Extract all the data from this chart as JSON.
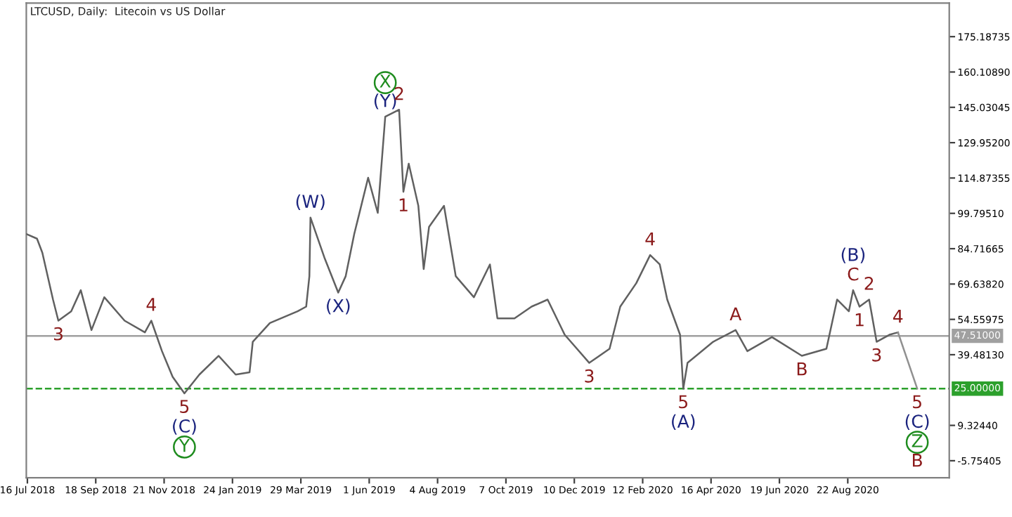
{
  "chart_data": {
    "type": "line",
    "title": "LTCUSD, Daily:  Litecoin vs US Dollar",
    "series": [
      {
        "color": "#606060",
        "x": [
          "2018-07-15",
          "2018-07-25",
          "2018-07-30",
          "2018-08-09",
          "2018-08-14",
          "2018-08-26",
          "2018-09-04",
          "2018-09-14",
          "2018-09-26",
          "2018-10-15",
          "2018-11-03",
          "2018-11-09",
          "2018-11-19",
          "2018-11-29",
          "2018-12-10",
          "2018-12-24",
          "2019-01-11",
          "2019-01-27",
          "2019-02-09",
          "2019-02-12",
          "2019-02-28",
          "2019-03-26",
          "2019-04-03",
          "2019-04-06",
          "2019-04-07",
          "2019-04-20",
          "2019-05-03",
          "2019-05-10",
          "2019-05-18",
          "2019-05-31",
          "2019-06-09",
          "2019-06-16",
          "2019-06-29",
          "2019-07-03",
          "2019-07-08",
          "2019-07-17",
          "2019-07-22",
          "2019-07-27",
          "2019-08-10",
          "2019-08-21",
          "2019-09-07",
          "2019-09-22",
          "2019-09-29",
          "2019-10-15",
          "2019-10-31",
          "2019-11-15",
          "2019-12-01",
          "2019-12-24",
          "2020-01-12",
          "2020-01-22",
          "2020-02-06",
          "2020-02-19",
          "2020-02-28",
          "2020-03-06",
          "2020-03-18",
          "2020-03-21",
          "2020-03-25",
          "2020-04-18",
          "2020-05-09",
          "2020-05-20",
          "2020-06-12",
          "2020-07-10",
          "2020-08-02",
          "2020-08-12",
          "2020-08-23",
          "2020-08-27",
          "2020-09-02",
          "2020-09-11",
          "2020-09-18",
          "2020-09-30",
          "2020-10-08"
        ],
        "values": [
          91,
          89,
          83,
          63,
          54,
          58,
          67,
          50,
          64,
          54,
          49,
          54,
          41,
          30,
          23,
          31,
          39,
          31,
          32,
          45,
          53,
          58,
          60,
          73,
          98,
          81,
          66,
          73,
          91,
          115,
          100,
          141,
          144,
          109,
          121,
          103,
          76,
          94,
          103,
          73,
          64,
          78,
          55,
          55,
          60,
          63,
          48,
          36,
          42,
          60,
          70,
          82,
          78,
          63,
          48,
          25,
          36,
          45,
          50,
          41,
          47,
          39,
          42,
          63,
          58,
          67,
          60,
          63,
          45,
          48,
          49
        ]
      },
      {
        "color": "#909090",
        "x": [
          "2020-10-08",
          "2020-10-26"
        ],
        "values": [
          49,
          25
        ]
      }
    ],
    "xlim": [
      "2018-07-15",
      "2020-11-25"
    ],
    "xticks": [
      {
        "value": "2018-07-16",
        "label": "16 Jul 2018"
      },
      {
        "value": "2018-09-18",
        "label": "18 Sep 2018"
      },
      {
        "value": "2018-11-21",
        "label": "21 Nov 2018"
      },
      {
        "value": "2019-01-24",
        "label": "24 Jan 2019"
      },
      {
        "value": "2019-03-29",
        "label": "29 Mar 2019"
      },
      {
        "value": "2019-06-01",
        "label": "1 Jun 2019"
      },
      {
        "value": "2019-08-04",
        "label": "4 Aug 2019"
      },
      {
        "value": "2019-10-07",
        "label": "7 Oct 2019"
      },
      {
        "value": "2019-12-10",
        "label": "10 Dec 2019"
      },
      {
        "value": "2020-02-12",
        "label": "12 Feb 2020"
      },
      {
        "value": "2020-04-16",
        "label": "16 Apr 2020"
      },
      {
        "value": "2020-06-19",
        "label": "19 Jun 2020"
      },
      {
        "value": "2020-08-22",
        "label": "22 Aug 2020"
      }
    ],
    "ylim": [
      -13,
      189.5
    ],
    "yticks": [
      175.18735,
      {
        "value": 160.1089,
        "label": "160.10890"
      },
      145.03045,
      {
        "value": 129.952,
        "label": "129.95200"
      },
      114.87355,
      {
        "value": 99.7951,
        "label": "99.79510"
      },
      84.71665,
      {
        "value": 69.6382,
        "label": "69.63820"
      },
      54.55975,
      {
        "value": 39.4813,
        "label": "39.48130"
      },
      {
        "value": 9.3244,
        "label": "9.32440"
      },
      -5.75405
    ],
    "ref_lines": [
      {
        "axis": "y",
        "value": 47.51,
        "label": "47.51000",
        "color": "#a0a0a0",
        "line_style": "solid"
      },
      {
        "axis": "y",
        "value": 25,
        "label": "25.00000",
        "color": "#2ca02c",
        "line_style": "dashed"
      }
    ],
    "grid": false,
    "legend": false,
    "marker": "none",
    "line_style": "solid",
    "annotations": [
      {
        "text": "3",
        "x": "2018-08-14",
        "y": 54
      },
      {
        "text": "4",
        "x": "2018-11-09",
        "y": 54
      },
      {
        "text": "5",
        "x": "2018-12-10",
        "y": 23
      },
      {
        "text": "(C)",
        "x": "2018-12-10",
        "y": 23
      },
      {
        "text": "Y",
        "x": "2018-12-10",
        "y": 23
      },
      {
        "text": "(W)",
        "x": "2019-04-07",
        "y": 98
      },
      {
        "text": "(X)",
        "x": "2019-05-03",
        "y": 66
      },
      {
        "text": "(Y)",
        "x": "2019-06-16",
        "y": 141
      },
      {
        "text": "X",
        "x": "2019-06-16",
        "y": 141
      },
      {
        "text": "2",
        "x": "2019-06-29",
        "y": 144
      },
      {
        "text": "1",
        "x": "2019-07-03",
        "y": 109
      },
      {
        "text": "3",
        "x": "2019-12-24",
        "y": 36
      },
      {
        "text": "4",
        "x": "2020-02-19",
        "y": 82
      },
      {
        "text": "5",
        "x": "2020-03-21",
        "y": 25
      },
      {
        "text": "(A)",
        "x": "2020-03-21",
        "y": 25
      },
      {
        "text": "A",
        "x": "2020-05-09",
        "y": 50
      },
      {
        "text": "B",
        "x": "2020-07-10",
        "y": 39
      },
      {
        "text": "C",
        "x": "2020-08-27",
        "y": 67
      },
      {
        "text": "(B)",
        "x": "2020-08-27",
        "y": 67
      },
      {
        "text": "1",
        "x": "2020-09-02",
        "y": 60
      },
      {
        "text": "2",
        "x": "2020-09-11",
        "y": 63
      },
      {
        "text": "3",
        "x": "2020-09-18",
        "y": 45
      },
      {
        "text": "4",
        "x": "2020-10-08",
        "y": 49
      },
      {
        "text": "5",
        "x": "2020-10-26",
        "y": 25
      },
      {
        "text": "(C)",
        "x": "2020-10-26",
        "y": 25
      },
      {
        "text": "Z",
        "x": "2020-10-26",
        "y": 25
      },
      "B"
    ]
  }
}
